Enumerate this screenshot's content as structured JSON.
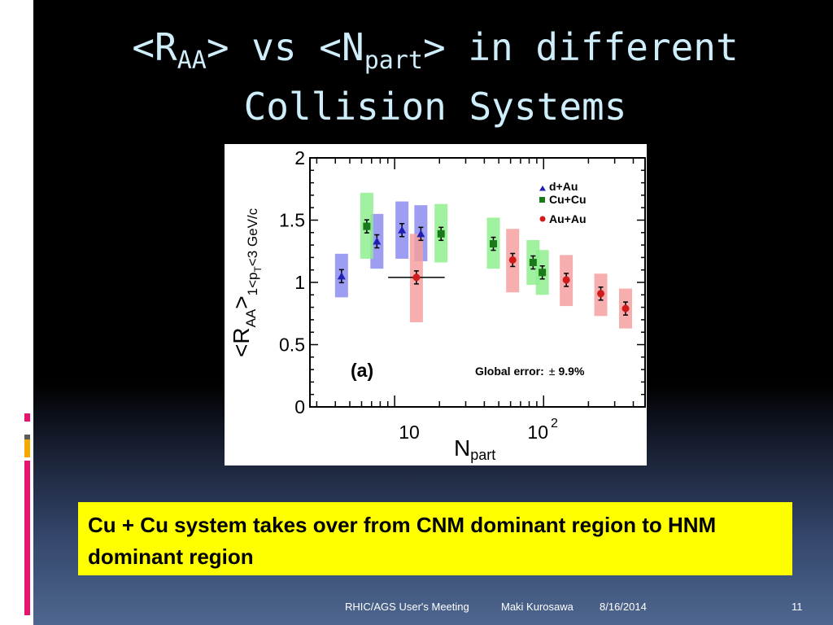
{
  "slide": {
    "title": {
      "prefix": "<R",
      "sub1": "AA",
      "mid": "> vs <N",
      "sub2": "part",
      "suffix": "> in different",
      "line2": "Collision Systems"
    },
    "callout": "Cu + Cu system takes over from CNM dominant region to HNM dominant region",
    "footer": {
      "meeting": "RHIC/AGS User's Meeting",
      "author": "Maki Kurosawa",
      "date": "8/16/2014",
      "page": "11"
    },
    "accent_colors": [
      "#e8126f",
      "#ffffff",
      "#5b5b5b",
      "#f5a800",
      "#e8126f"
    ]
  },
  "chart_data": {
    "type": "scatter",
    "x_scale": "log",
    "xlim": [
      2.7,
      480
    ],
    "ylim": [
      0,
      2
    ],
    "y_ticks": [
      "0",
      "0.5",
      "1",
      "1.5",
      "2"
    ],
    "x_tick_labels": [
      {
        "x": 10,
        "label": "10"
      },
      {
        "x": 100,
        "label": "10",
        "exp": "2"
      }
    ],
    "xlabel": {
      "main": "N",
      "sub": "part"
    },
    "ylabel": {
      "main": "<R",
      "sub": "AA",
      "close": ">",
      "cut_a": "1<p",
      "cut_sub": "T",
      "cut_b": "<3 GeV/c"
    },
    "panel_label": "(a)",
    "annotation": {
      "text": "Global error:",
      "pm": "±",
      "value": "9.9%"
    },
    "legend_position": "top-right",
    "series": [
      {
        "name": "d+Au",
        "marker": "triangle",
        "color": "#1f1fb5",
        "box_color": "#8c8cf0",
        "points": [
          {
            "x": 4.4,
            "y": 1.05,
            "lo": 0.88,
            "hi": 1.23
          },
          {
            "x": 7.6,
            "y": 1.33,
            "lo": 1.11,
            "hi": 1.55
          },
          {
            "x": 11.2,
            "y": 1.42,
            "lo": 1.19,
            "hi": 1.65
          },
          {
            "x": 15.0,
            "y": 1.39,
            "lo": 1.17,
            "hi": 1.62
          }
        ]
      },
      {
        "name": "Cu+Cu",
        "marker": "square",
        "color": "#1a7a1a",
        "box_color": "#8fef8f",
        "points": [
          {
            "x": 6.5,
            "y": 1.45,
            "lo": 1.19,
            "hi": 1.72
          },
          {
            "x": 20.5,
            "y": 1.39,
            "lo": 1.16,
            "hi": 1.63
          },
          {
            "x": 46,
            "y": 1.31,
            "lo": 1.11,
            "hi": 1.52
          },
          {
            "x": 85,
            "y": 1.16,
            "lo": 0.98,
            "hi": 1.34
          },
          {
            "x": 98,
            "y": 1.08,
            "lo": 0.9,
            "hi": 1.26
          }
        ]
      },
      {
        "name": "Au+Au",
        "marker": "circle",
        "color": "#d11a1a",
        "box_color": "#f5a0a0",
        "points": [
          {
            "x": 14,
            "y": 1.04,
            "lo": 0.68,
            "hi": 1.39,
            "xerr": 0.19
          },
          {
            "x": 62,
            "y": 1.18,
            "lo": 0.92,
            "hi": 1.43
          },
          {
            "x": 142,
            "y": 1.02,
            "lo": 0.81,
            "hi": 1.22
          },
          {
            "x": 242,
            "y": 0.91,
            "lo": 0.73,
            "hi": 1.07
          },
          {
            "x": 355,
            "y": 0.79,
            "lo": 0.63,
            "hi": 0.95
          }
        ]
      }
    ]
  }
}
